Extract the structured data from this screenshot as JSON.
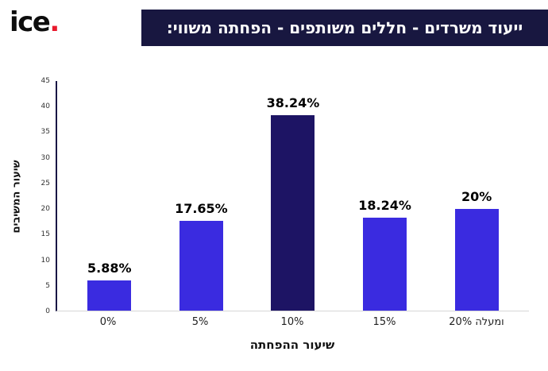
{
  "logo": {
    "text": "ice",
    "dot": ".",
    "dot_color": "#e8192c"
  },
  "banner": {
    "title": "ייעוד משרדים - חללים משותפים - הפחתה משווי:",
    "bg": "#181740"
  },
  "chart_data": {
    "type": "bar",
    "categories": [
      "0%",
      "5%",
      "10%",
      "15%",
      "20% ומעלה"
    ],
    "values": [
      5.88,
      17.65,
      38.24,
      18.24,
      20
    ],
    "value_labels": [
      "5.88%",
      "17.65%",
      "38.24%",
      "18.24%",
      "20%"
    ],
    "title": "ייעוד משרדים - חללים משותפים - הפחתה משווי:",
    "xlabel": "שיעור ההפחתה",
    "ylabel": "שיעור המשיבים",
    "ylim": [
      0,
      45
    ],
    "yticks": [
      0,
      5,
      10,
      15,
      20,
      25,
      30,
      35,
      40,
      45
    ],
    "grid": false,
    "legend": "none",
    "bar_color": "#3a2be0",
    "highlight_index": 2,
    "highlight_color": "#1d1464",
    "axis_color": "#191645"
  }
}
